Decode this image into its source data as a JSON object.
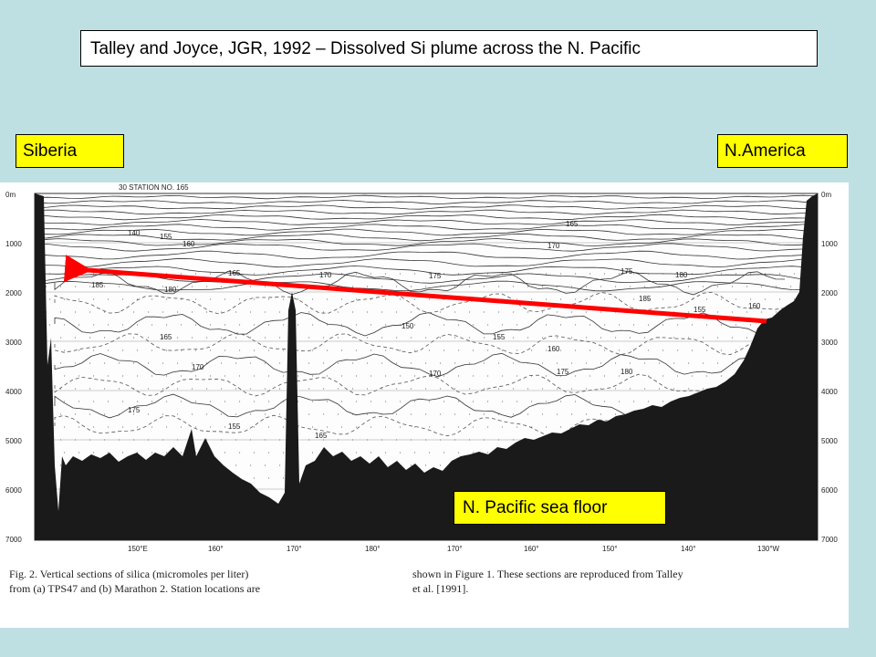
{
  "title": "Talley and Joyce, JGR, 1992 – Dissolved Si plume across the N. Pacific",
  "left_label": "Siberia",
  "right_label": "N.America",
  "floor_label": "N. Pacific sea floor",
  "figure": {
    "depth_ticks": [
      "0m",
      "1000",
      "2000",
      "3000",
      "4000",
      "5000",
      "6000",
      "7000"
    ],
    "depth_ticks_right": [
      "0m",
      "1000",
      "2000",
      "3000",
      "4000",
      "5000",
      "6000",
      "7000"
    ],
    "lon_ticks": [
      "150°E",
      "160°",
      "170°",
      "180°",
      "170°",
      "160°",
      "150°",
      "140°",
      "130°W"
    ],
    "station_header": "30 STATION NO. 165",
    "caption_left_1": "Fig. 2.  Vertical sections of silica (micromoles per liter)",
    "caption_left_2": "from (a) TPS47 and (b) Marathon 2.  Station locations are",
    "caption_right_1": "shown in Figure 1.  These sections are reproduced from Talley",
    "caption_right_2": "et al. [1991].",
    "contour_labels": [
      "140",
      "155",
      "160",
      "165",
      "170",
      "175",
      "180",
      "185",
      "155",
      "160",
      "165",
      "170",
      "175",
      "180",
      "185",
      "150",
      "155",
      "160",
      "165",
      "170",
      "175",
      "155",
      "165",
      "170",
      "175",
      "180",
      "185"
    ]
  },
  "colors": {
    "arrow": "#ff0000",
    "box": "#ffff00",
    "background": "#bfe0e3",
    "seafloor": "#1a1a1a"
  }
}
